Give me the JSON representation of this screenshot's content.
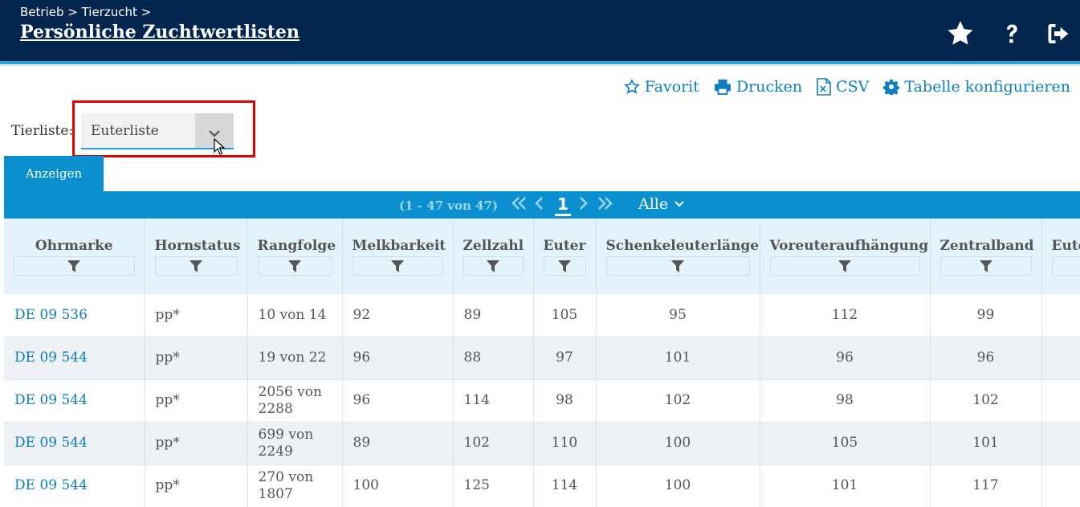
{
  "header": {
    "breadcrumb": "Betrieb > Tierzucht >",
    "title": "Persönliche Zuchtwertlisten",
    "icons": [
      "star-icon",
      "help-icon",
      "logout-icon"
    ]
  },
  "toolbar": {
    "favorit": "Favorit",
    "drucken": "Drucken",
    "csv": "CSV",
    "konfigurieren": "Tabelle konfigurieren"
  },
  "tierliste": {
    "label": "Tierliste:",
    "value": "Euterliste"
  },
  "tab": {
    "label": "Anzeigen"
  },
  "pager": {
    "count": "(1 - 47 von 47)",
    "current_page": "1",
    "page_size": "Alle"
  },
  "table": {
    "columns": [
      "Ohrmarke",
      "Hornstatus",
      "Rangfolge",
      "Melkbarkeit",
      "Zellzahl",
      "Euter",
      "Schenkeleuterlänge",
      "Voreuteraufhängung",
      "Zentralband",
      "Eute"
    ],
    "rows": [
      [
        "DE 09 536",
        "pp*",
        "10 von 14",
        "92",
        "89",
        "105",
        "95",
        "112",
        "99",
        ""
      ],
      [
        "DE 09 544",
        "pp*",
        "19 von 22",
        "96",
        "88",
        "97",
        "101",
        "96",
        "96",
        ""
      ],
      [
        "DE 09 544",
        "pp*",
        "2056 von 2288",
        "96",
        "114",
        "98",
        "102",
        "98",
        "102",
        ""
      ],
      [
        "DE 09 544",
        "pp*",
        "699 von 2249",
        "89",
        "102",
        "110",
        "100",
        "105",
        "101",
        ""
      ],
      [
        "DE 09 544",
        "pp*",
        "270 von 1807",
        "100",
        "125",
        "114",
        "100",
        "101",
        "117",
        ""
      ]
    ]
  },
  "colors": {
    "header_bg": "#03264f",
    "accent": "#0b8fcf",
    "link": "#0b7fc0",
    "highlight": "#e00000"
  }
}
